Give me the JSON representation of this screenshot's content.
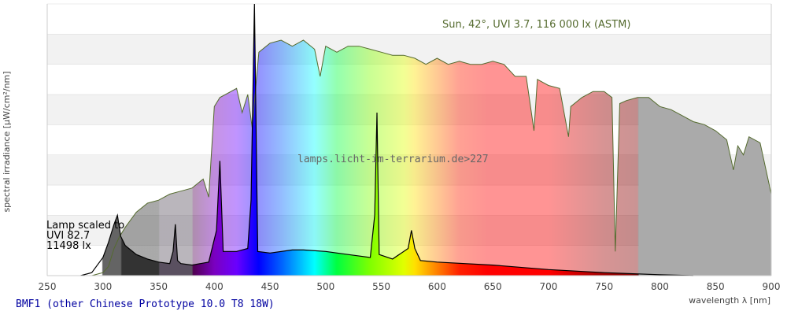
{
  "title": "BMF1 (other Chinese Prototype 10.0 T8 18W)",
  "watermark": "lamps.licht-im-terrarium.de>227",
  "chart_data": {
    "type": "area",
    "xlabel": "wavelength λ [nm]",
    "ylabel": "spectral irradiance [µW/cm²/nm]",
    "xlim": [
      250,
      900
    ],
    "ylim": [
      0,
      9
    ],
    "xticks": [
      250,
      300,
      350,
      400,
      450,
      500,
      550,
      600,
      650,
      700,
      750,
      800,
      850,
      900
    ],
    "grid": true,
    "series": [
      {
        "name": "Sun, 42°, UVI 3.7, 116 000 lx (ASTM)",
        "color": "#556b2f",
        "x": [
          290,
          300,
          305,
          310,
          315,
          320,
          330,
          340,
          350,
          360,
          370,
          380,
          390,
          395,
          400,
          405,
          410,
          420,
          425,
          430,
          434,
          440,
          450,
          460,
          470,
          480,
          490,
          495,
          500,
          510,
          520,
          530,
          540,
          550,
          560,
          570,
          580,
          590,
          600,
          610,
          620,
          630,
          640,
          650,
          660,
          670,
          680,
          687,
          690,
          700,
          710,
          718,
          720,
          730,
          740,
          750,
          757,
          760,
          764,
          770,
          780,
          790,
          800,
          810,
          820,
          830,
          840,
          850,
          860,
          866,
          870,
          875,
          880,
          890,
          900
        ],
        "y": [
          0,
          0.1,
          0.3,
          0.9,
          1.3,
          1.6,
          2.1,
          2.4,
          2.5,
          2.7,
          2.8,
          2.9,
          3.2,
          2.6,
          5.6,
          5.9,
          6.0,
          6.2,
          5.4,
          6.0,
          4.9,
          7.4,
          7.7,
          7.8,
          7.6,
          7.8,
          7.5,
          6.6,
          7.6,
          7.4,
          7.6,
          7.6,
          7.5,
          7.4,
          7.3,
          7.3,
          7.2,
          7.0,
          7.2,
          7.0,
          7.1,
          7.0,
          7.0,
          7.1,
          7.0,
          6.6,
          6.6,
          4.8,
          6.5,
          6.3,
          6.2,
          4.6,
          5.6,
          5.9,
          6.1,
          6.1,
          5.9,
          0.8,
          5.7,
          5.8,
          5.9,
          5.9,
          5.6,
          5.5,
          5.3,
          5.1,
          5.0,
          4.8,
          4.5,
          3.5,
          4.3,
          4.0,
          4.6,
          4.4,
          2.7
        ]
      },
      {
        "name": "Lamp scaled to UVI 82.7, 11498 lx",
        "color": "#000000",
        "x": [
          280,
          290,
          300,
          305,
          310,
          313,
          316,
          320,
          330,
          340,
          350,
          360,
          363,
          365,
          367,
          370,
          380,
          395,
          402,
          405,
          408,
          420,
          430,
          433,
          436,
          439,
          450,
          470,
          480,
          500,
          520,
          540,
          544,
          546,
          548,
          560,
          574,
          577,
          580,
          585,
          600,
          650,
          700,
          750,
          800,
          830
        ],
        "y": [
          0,
          0.1,
          0.6,
          1.1,
          1.7,
          2.0,
          1.3,
          1.0,
          0.7,
          0.55,
          0.45,
          0.4,
          0.8,
          1.7,
          0.5,
          0.4,
          0.35,
          0.45,
          1.5,
          3.8,
          0.8,
          0.8,
          0.9,
          2.5,
          9,
          0.8,
          0.75,
          0.85,
          0.85,
          0.8,
          0.7,
          0.6,
          2.0,
          5.4,
          0.7,
          0.55,
          0.9,
          1.5,
          0.9,
          0.5,
          0.45,
          0.35,
          0.2,
          0.1,
          0.03,
          0
        ]
      }
    ],
    "annotations": {
      "sun_label": "Sun, 42°, UVI 3.7, 116 000 lx (ASTM)",
      "lamp_label": [
        "Lamp scaled to",
        "UVI 82.7",
        "11498 lx"
      ]
    }
  }
}
